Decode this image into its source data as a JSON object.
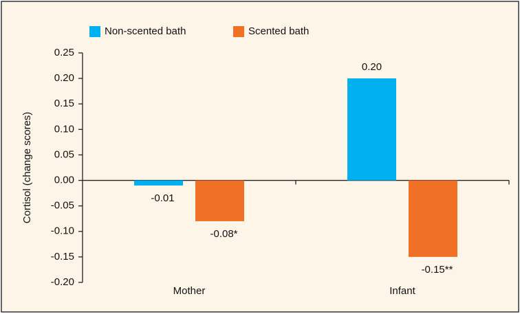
{
  "chart_data": {
    "type": "bar",
    "y_label": "Cortisol (change scores)",
    "categories": [
      "Mother",
      "Infant"
    ],
    "series": [
      {
        "name": "Non-scented bath",
        "color": "#00b0f0",
        "values": [
          -0.01,
          0.2
        ],
        "value_labels": [
          "-0.01",
          "0.20"
        ]
      },
      {
        "name": "Scented bath",
        "color": "#f07026",
        "values": [
          -0.08,
          -0.15
        ],
        "value_labels": [
          "-0.08*",
          "-0.15**"
        ]
      }
    ],
    "ylim": [
      -0.2,
      0.25
    ],
    "yticks": [
      {
        "value": -0.2,
        "label": "-0.20"
      },
      {
        "value": -0.15,
        "label": "-0.15"
      },
      {
        "value": -0.1,
        "label": "-0.10"
      },
      {
        "value": -0.05,
        "label": "-0.05"
      },
      {
        "value": 0,
        "label": "0.00"
      },
      {
        "value": 0.05,
        "label": "0.05"
      },
      {
        "value": 0.1,
        "label": "0.10"
      },
      {
        "value": 0.15,
        "label": "0.15"
      },
      {
        "value": 0.2,
        "label": "0.20"
      },
      {
        "value": 0.25,
        "label": "0.25"
      }
    ],
    "grid": false,
    "legend": "top"
  }
}
